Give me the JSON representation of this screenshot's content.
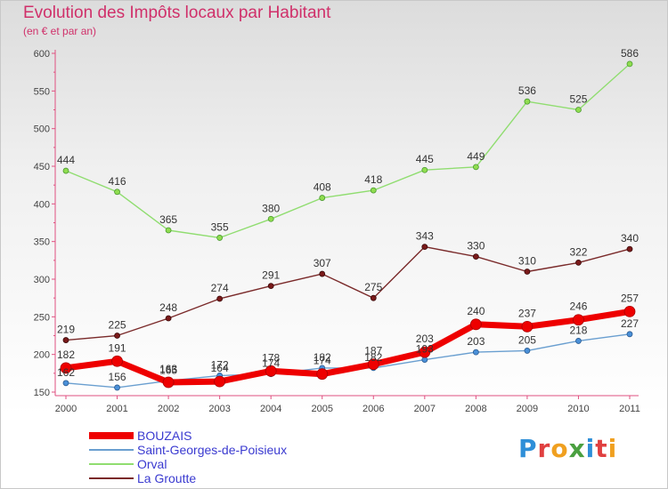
{
  "header": {
    "title": "Evolution des Impôts locaux par Habitant",
    "subtitle": "(en € et par an)"
  },
  "logo": {
    "text": "Proxiti"
  },
  "chart_data": {
    "type": "line",
    "x": [
      "2000",
      "2001",
      "2002",
      "2003",
      "2004",
      "2005",
      "2006",
      "2007",
      "2008",
      "2009",
      "2010",
      "2011"
    ],
    "ylim": [
      150,
      600
    ],
    "yticks": [
      150,
      200,
      250,
      300,
      350,
      400,
      450,
      500,
      550,
      600
    ],
    "grid": false,
    "legend_position": "bottom-left",
    "series": [
      {
        "name": "BOUZAIS",
        "color": "#ee0000",
        "values": [
          182,
          191,
          163,
          164,
          178,
          174,
          187,
          203,
          240,
          237,
          246,
          257
        ]
      },
      {
        "name": "Saint-Georges-de-Poisieux",
        "color": "#6a9fd0",
        "values": [
          162,
          156,
          165,
          172,
          174,
          182,
          182,
          193,
          203,
          205,
          218,
          227
        ]
      },
      {
        "name": "Orval",
        "color": "#90dd70",
        "values": [
          444,
          416,
          365,
          355,
          380,
          408,
          418,
          445,
          449,
          536,
          525,
          586
        ]
      },
      {
        "name": "La Groutte",
        "color": "#7a2a2a",
        "values": [
          219,
          225,
          248,
          274,
          291,
          307,
          275,
          343,
          330,
          310,
          322,
          340
        ]
      }
    ]
  }
}
